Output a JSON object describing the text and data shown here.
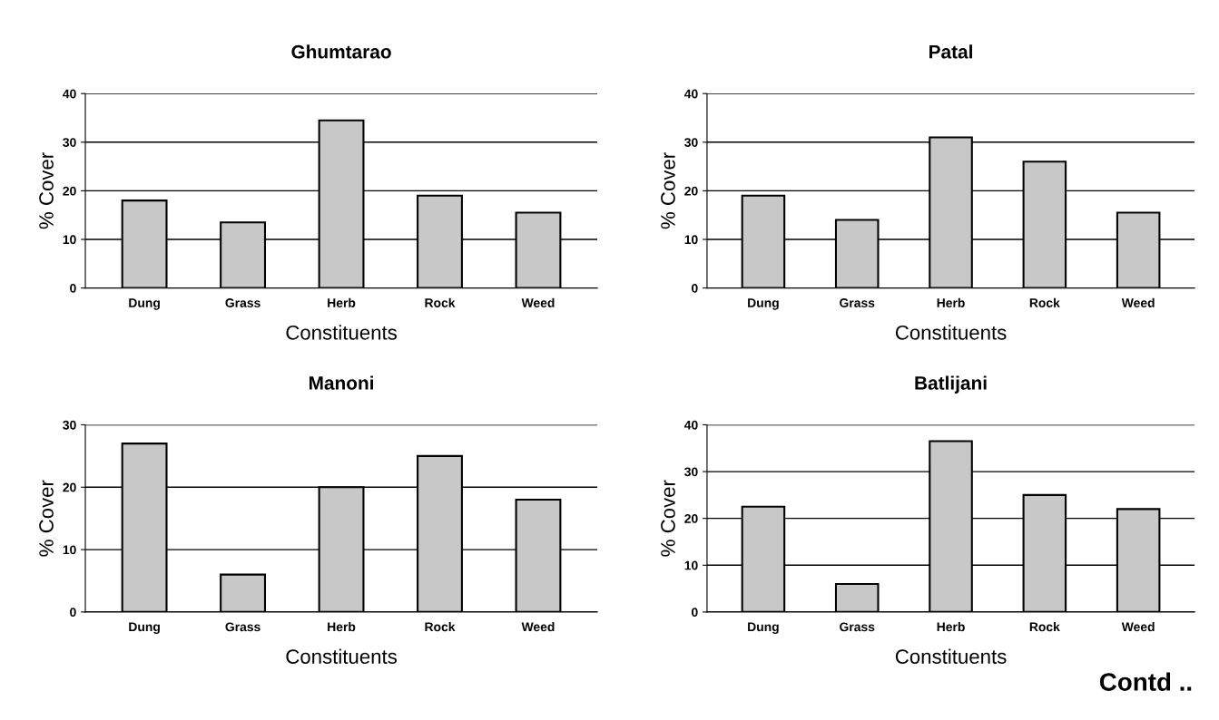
{
  "chart_data": [
    {
      "type": "bar",
      "title": "Ghumtarao",
      "xlabel": "Constituents",
      "ylabel": "% Cover",
      "categories": [
        "Dung",
        "Grass",
        "Herb",
        "Rock",
        "Weed"
      ],
      "values": [
        18,
        13.5,
        34.5,
        19,
        15.5
      ],
      "color": "#c8c8c8",
      "ylim": [
        0,
        40
      ],
      "yticks": [
        0,
        10,
        20,
        30,
        40
      ],
      "grid": "y"
    },
    {
      "type": "bar",
      "title": "Patal",
      "xlabel": "Constituents",
      "ylabel": "% Cover",
      "categories": [
        "Dung",
        "Grass",
        "Herb",
        "Rock",
        "Weed"
      ],
      "values": [
        19,
        14,
        31,
        26,
        15.5
      ],
      "color": "#c8c8c8",
      "ylim": [
        0,
        40
      ],
      "yticks": [
        0,
        10,
        20,
        30,
        40
      ],
      "grid": "y"
    },
    {
      "type": "bar",
      "title": "Manoni",
      "xlabel": "Constituents",
      "ylabel": "% Cover",
      "categories": [
        "Dung",
        "Grass",
        "Herb",
        "Rock",
        "Weed"
      ],
      "values": [
        27,
        6,
        20,
        25,
        18
      ],
      "color": "#c8c8c8",
      "ylim": [
        0,
        30
      ],
      "yticks": [
        0,
        10,
        20,
        30
      ],
      "grid": "y"
    },
    {
      "type": "bar",
      "title": "Batlijani",
      "xlabel": "Constituents",
      "ylabel": "% Cover",
      "categories": [
        "Dung",
        "Grass",
        "Herb",
        "Rock",
        "Weed"
      ],
      "values": [
        22.5,
        6,
        36.5,
        25,
        22
      ],
      "color": "#c8c8c8",
      "ylim": [
        0,
        40
      ],
      "yticks": [
        0,
        10,
        20,
        30,
        40
      ],
      "grid": "y",
      "annotations": [
        "Contd .."
      ]
    }
  ]
}
